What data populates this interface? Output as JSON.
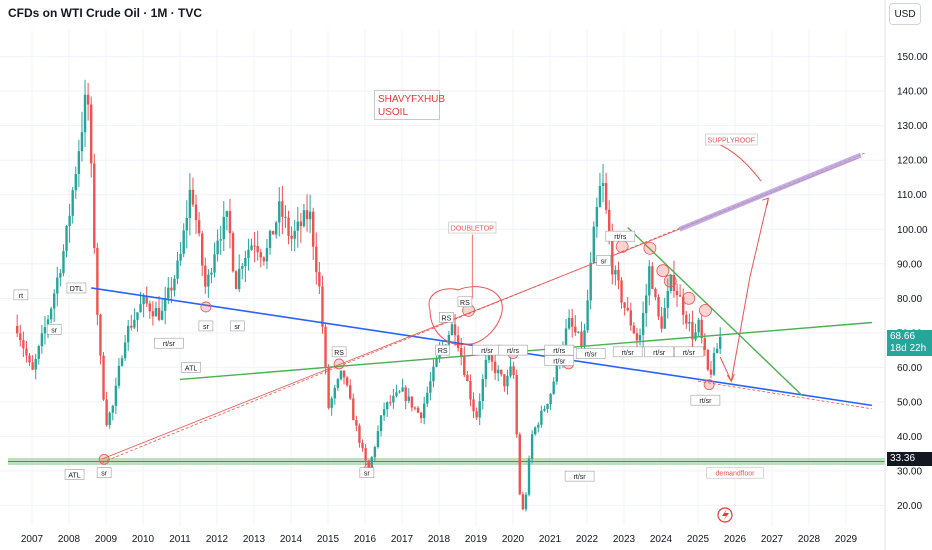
{
  "header": {
    "title": "CFDs on WTI Crude Oil · 1M · TVC",
    "currency": "USD"
  },
  "note": {
    "line1": "SHAVYFXHUB",
    "line2": "USOIL"
  },
  "price_tag": {
    "price": "68.66",
    "countdown": "18d 22h",
    "color": "#26a69a"
  },
  "level_tag": {
    "price": "33.36"
  },
  "labels": {
    "doubletop": "DOUBLETOP",
    "supplyroof": "SUPPLYROOF",
    "demandfloor": "demandfloor",
    "atl": "ATL",
    "dtl": "DTL",
    "rs": "RS",
    "sr": "sr",
    "rt_sr": "rt/sr",
    "rt_rs": "rt/rs",
    "rt": "rt"
  },
  "colors": {
    "up": "#26a69a",
    "down": "#ef5350",
    "blue_line": "#2962ff",
    "green_line": "#4caf50",
    "zone": "#a5d6a7",
    "roof": "#b39ddb"
  },
  "chart_data": {
    "type": "candlestick",
    "title": "CFDs on WTI Crude Oil · 1M · TVC",
    "currency": "USD",
    "ylim": [
      15,
      155
    ],
    "xlim": [
      2006.6,
      2029.7
    ],
    "y_ticks": [
      20,
      30,
      40,
      50,
      60,
      70,
      80,
      90,
      100,
      110,
      120,
      130,
      140,
      150
    ],
    "y_tick_labels": [
      "20.00",
      "30.00",
      "40.00",
      "50.00",
      "60.00",
      "70.00",
      "80.00",
      "90.00",
      "100.00",
      "110.00",
      "120.00",
      "130.00",
      "140.00",
      "150.00"
    ],
    "x_ticks": [
      2007,
      2008,
      2009,
      2010,
      2011,
      2012,
      2013,
      2014,
      2015,
      2016,
      2017,
      2018,
      2019,
      2020,
      2021,
      2022,
      2023,
      2024,
      2025,
      2026,
      2027,
      2028,
      2029
    ],
    "monthly_close_anchors": [
      [
        2006.6,
        72
      ],
      [
        2007.0,
        58
      ],
      [
        2007.5,
        77
      ],
      [
        2007.9,
        96
      ],
      [
        2008.4,
        134
      ],
      [
        2008.5,
        140
      ],
      [
        2008.8,
        68
      ],
      [
        2009.0,
        44
      ],
      [
        2009.2,
        49
      ],
      [
        2009.5,
        69
      ],
      [
        2010.0,
        79
      ],
      [
        2010.5,
        75
      ],
      [
        2011.0,
        91
      ],
      [
        2011.3,
        113
      ],
      [
        2011.7,
        82
      ],
      [
        2012.0,
        98
      ],
      [
        2012.3,
        103
      ],
      [
        2012.5,
        84
      ],
      [
        2012.7,
        92
      ],
      [
        2013.0,
        97
      ],
      [
        2013.3,
        92
      ],
      [
        2013.7,
        106
      ],
      [
        2014.0,
        97
      ],
      [
        2014.5,
        105
      ],
      [
        2014.8,
        80
      ],
      [
        2015.0,
        48
      ],
      [
        2015.4,
        59
      ],
      [
        2015.7,
        45
      ],
      [
        2016.0,
        33
      ],
      [
        2016.1,
        30
      ],
      [
        2016.5,
        48
      ],
      [
        2017.0,
        53
      ],
      [
        2017.5,
        46
      ],
      [
        2018.0,
        64
      ],
      [
        2018.4,
        73
      ],
      [
        2018.8,
        54
      ],
      [
        2019.0,
        45
      ],
      [
        2019.3,
        63
      ],
      [
        2019.8,
        55
      ],
      [
        2020.0,
        61
      ],
      [
        2020.2,
        20
      ],
      [
        2020.3,
        18
      ],
      [
        2020.5,
        40
      ],
      [
        2021.0,
        52
      ],
      [
        2021.5,
        73
      ],
      [
        2021.9,
        66
      ],
      [
        2022.2,
        100
      ],
      [
        2022.4,
        115
      ],
      [
        2022.7,
        88
      ],
      [
        2023.0,
        78
      ],
      [
        2023.4,
        67
      ],
      [
        2023.6,
        81
      ],
      [
        2023.7,
        90
      ],
      [
        2023.9,
        75
      ],
      [
        2024.0,
        72
      ],
      [
        2024.3,
        86
      ],
      [
        2024.6,
        77
      ],
      [
        2024.9,
        68
      ],
      [
        2025.0,
        73
      ],
      [
        2025.3,
        57
      ],
      [
        2025.4,
        61
      ],
      [
        2025.6,
        68.66
      ]
    ],
    "levels": [
      {
        "label": "33.36",
        "value": 33.36
      }
    ],
    "trendlines": [
      {
        "name": "DTL",
        "from": [
          2008.6,
          83
        ],
        "to": [
          2029.7,
          49
        ]
      },
      {
        "name": "ATL",
        "from": [
          2008.9,
          32.5
        ],
        "to": [
          2029.5,
          122
        ]
      },
      {
        "name": "ATL",
        "from": [
          2008.9,
          33.5
        ],
        "to": [
          2029.3,
          120.5
        ]
      },
      {
        "name": "ATL",
        "from": [
          2011.0,
          56.5
        ],
        "to": [
          2029.7,
          73
        ]
      },
      {
        "name": "",
        "from": [
          2023.1,
          100.5
        ],
        "to": [
          2027.8,
          52
        ]
      },
      {
        "name": "SUPPLYROOF",
        "from": [
          2024.5,
          100
        ],
        "to": [
          2029.4,
          121.5
        ]
      }
    ],
    "projection": [
      [
        2025.6,
        63
      ],
      [
        2025.9,
        56
      ],
      [
        2026.4,
        86
      ],
      [
        2026.9,
        109
      ]
    ]
  }
}
